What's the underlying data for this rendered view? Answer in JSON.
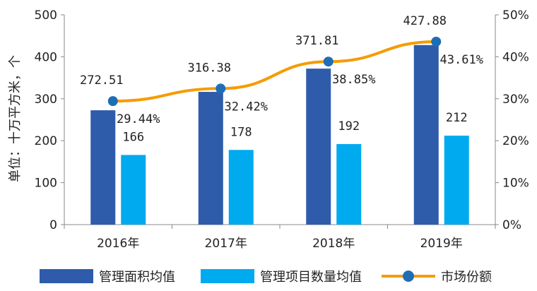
{
  "chart_data": {
    "type": "bar",
    "categories": [
      "2016年",
      "2017年",
      "2018年",
      "2019年"
    ],
    "series": [
      {
        "name": "管理面积均值",
        "values": [
          272.51,
          316.38,
          371.81,
          427.88
        ],
        "labels": [
          "272.51",
          "316.38",
          "371.81",
          "427.88"
        ],
        "color": "#2E5CAB",
        "axis": "left"
      },
      {
        "name": "管理项目数量均值",
        "values": [
          166,
          178,
          192,
          212
        ],
        "labels": [
          "166",
          "178",
          "192",
          "212"
        ],
        "color": "#00AAEF",
        "axis": "left"
      },
      {
        "name": "市场份额",
        "type": "line",
        "values": [
          29.44,
          32.42,
          38.85,
          43.61
        ],
        "labels": [
          "29.44%",
          "32.42%",
          "38.85%",
          "43.61%"
        ],
        "color": "#F59C00",
        "marker_color": "#1F6EB5",
        "axis": "right"
      }
    ],
    "ylabel": "单位：十万平方米，个",
    "ylim": [
      0,
      500
    ],
    "yticks": [
      "0",
      "100",
      "200",
      "300",
      "400",
      "500"
    ],
    "y2lim": [
      0,
      50
    ],
    "y2ticks": [
      "0%",
      "10%",
      "20%",
      "30%",
      "40%",
      "50%"
    ],
    "legend_position": "bottom"
  }
}
